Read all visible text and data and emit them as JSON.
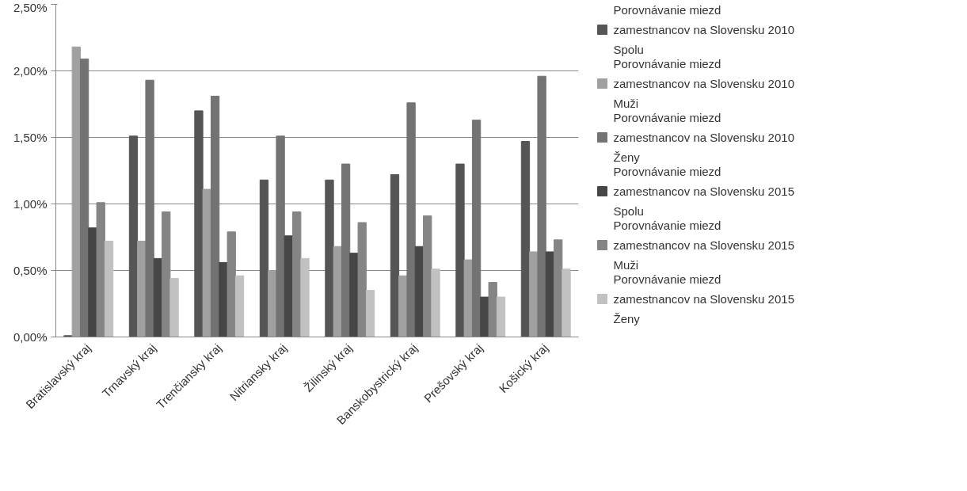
{
  "chart_data": {
    "type": "bar",
    "categories": [
      "Bratislavský kraj",
      "Trnavský kraj",
      "Trenčiansky kraj",
      "Nitriansky kraj",
      "Žilinský kraj",
      "Banskobystrický kraj",
      "Prešovský kraj",
      "Košický kraj"
    ],
    "series": [
      {
        "name": "Porovnávanie miezd zamestnancov na Slovensku 2010 Spolu",
        "color": "#555555",
        "values": [
          0.01,
          1.51,
          1.7,
          1.18,
          1.18,
          1.22,
          1.3,
          1.47
        ]
      },
      {
        "name": "Porovnávanie miezd zamestnancov na Slovensku 2010 Muži",
        "color": "#a0a0a0",
        "values": [
          2.18,
          0.72,
          1.11,
          0.5,
          0.68,
          0.46,
          0.58,
          0.64
        ]
      },
      {
        "name": "Porovnávanie miezd zamestnancov na Slovensku 2010 Ženy",
        "color": "#737373",
        "values": [
          2.09,
          1.93,
          1.81,
          1.51,
          1.3,
          1.76,
          1.63,
          1.96
        ]
      },
      {
        "name": "Porovnávanie miezd zamestnancov na Slovensku 2015 Spolu",
        "color": "#464646",
        "values": [
          0.82,
          0.59,
          0.56,
          0.76,
          0.63,
          0.68,
          0.3,
          0.64
        ]
      },
      {
        "name": "Porovnávanie miezd zamestnancov na Slovensku 2015 Muži",
        "color": "#858585",
        "values": [
          1.01,
          0.94,
          0.79,
          0.94,
          0.86,
          0.91,
          0.41,
          0.73
        ]
      },
      {
        "name": "Porovnávanie miezd zamestnancov na Slovensku 2015 Ženy",
        "color": "#c1c1c1",
        "values": [
          0.72,
          0.44,
          0.46,
          0.59,
          0.35,
          0.51,
          0.3,
          0.51
        ]
      }
    ],
    "ylim": [
      0,
      2.5
    ],
    "yticks": [
      {
        "value": 0,
        "label": "0,00%"
      },
      {
        "value": 0.5,
        "label": "0,50%"
      },
      {
        "value": 1,
        "label": "1,00%"
      },
      {
        "value": 1.5,
        "label": "1,50%"
      },
      {
        "value": 2,
        "label": "2,00%"
      },
      {
        "value": 2.5,
        "label": "2,50%"
      }
    ],
    "grid": "y",
    "legend": "right"
  }
}
